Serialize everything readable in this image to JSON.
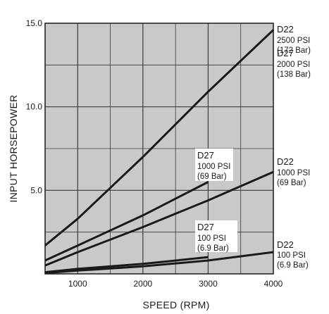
{
  "chart_data": {
    "type": "line",
    "xlabel": "SPEED (RPM)",
    "ylabel": "INPUT HORSEPOWER",
    "xlim": [
      500,
      4000
    ],
    "ylim": [
      0,
      15
    ],
    "x_ticks": [
      "1000",
      "2000",
      "3000",
      "4000"
    ],
    "y_ticks": [
      "5.0",
      "10.0",
      "15.0"
    ],
    "grid": true,
    "plot_background": "#c9c9c9",
    "line_color": "#1a1a1a",
    "series": [
      {
        "annotation": [
          "D22",
          "2500 PSI",
          "(172 Bar)"
        ],
        "x": [
          500,
          1000,
          2000,
          3000,
          4000
        ],
        "y": [
          1.7,
          3.3,
          7.0,
          10.9,
          14.6
        ]
      },
      {
        "annotation": [
          "D27",
          "2000 PSI",
          "(138 Bar)"
        ],
        "x": [],
        "y": []
      },
      {
        "annotation": [
          "D27",
          "1000 PSI",
          "(69 Bar)"
        ],
        "x": [
          500,
          1000,
          2000,
          3000
        ],
        "y": [
          0.8,
          1.7,
          3.5,
          5.5
        ]
      },
      {
        "annotation": [
          "D22",
          "1000 PSI",
          "(69 Bar)"
        ],
        "x": [
          500,
          1000,
          2000,
          3000,
          4000
        ],
        "y": [
          0.5,
          1.3,
          2.8,
          4.4,
          6.1
        ]
      },
      {
        "annotation": [
          "D27",
          "100 PSI",
          "(6.9 Bar)"
        ],
        "x": [
          500,
          1000,
          2000,
          3000
        ],
        "y": [
          0.1,
          0.3,
          0.6,
          1.0
        ]
      },
      {
        "annotation": [
          "D22",
          "100 PSI",
          "(6.9 Bar)"
        ],
        "x": [
          500,
          1000,
          2000,
          3000,
          4000
        ],
        "y": [
          0.05,
          0.2,
          0.45,
          0.8,
          1.3
        ]
      }
    ]
  }
}
